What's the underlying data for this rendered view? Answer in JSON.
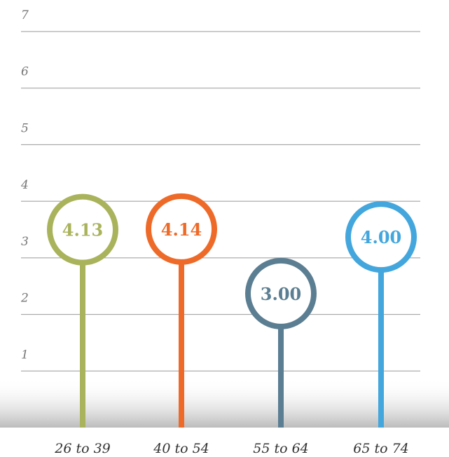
{
  "chart_data": {
    "type": "lollipop",
    "categories": [
      "26 to 39",
      "40 to 54",
      "55 to 64",
      "65 to 74"
    ],
    "values": [
      4.13,
      4.14,
      3.0,
      4.0
    ],
    "value_labels": [
      "4.13",
      "4.14",
      "3.00",
      "4.00"
    ],
    "colors": [
      "#a9b35b",
      "#ee6a29",
      "#5b7e92",
      "#43a6dd"
    ],
    "ylim": [
      0,
      7
    ],
    "yticks": [
      1,
      2,
      3,
      4,
      5,
      6,
      7
    ],
    "grid": true
  }
}
